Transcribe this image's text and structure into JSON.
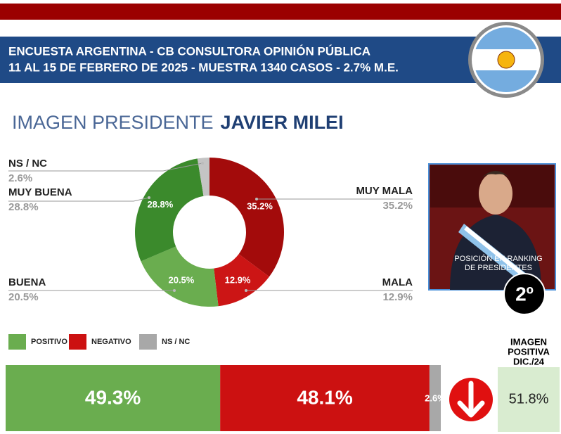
{
  "header": {
    "line1": "ENCUESTA ARGENTINA - CB CONSULTORA OPINIÓN PÚBLICA",
    "line2": "11 AL 15 DE FEBRERO DE 2025 - MUESTRA 1340 CASOS - 2.7% M.E."
  },
  "page_title": {
    "text": "IMAGEN PRESIDENTE",
    "name": "JAVIER MILEI"
  },
  "ranking": {
    "label_lines": [
      "POSICIÓN EN RANKING",
      "DE PRESIDENTES"
    ],
    "position": "2º"
  },
  "previous": {
    "label_lines": [
      "IMAGEN",
      "POSITIVA",
      "DIC./24"
    ],
    "value": "51.8%"
  },
  "chart_data": [
    {
      "type": "donut",
      "categories": [
        "MUY MALA",
        "MALA",
        "BUENA",
        "MUY BUENA",
        "NS / NC"
      ],
      "values": [
        35.2,
        12.9,
        20.5,
        28.8,
        2.6
      ],
      "value_labels": [
        "35.2%",
        "12.9%",
        "20.5%",
        "28.8%",
        "2.6%"
      ],
      "colors": [
        "#a30b0b",
        "#cc1515",
        "#6aad4f",
        "#3b8a2c",
        "#c4c4c4"
      ]
    },
    {
      "type": "bar",
      "orientation": "horizontal",
      "stacked": true,
      "xlim": [
        0,
        100
      ],
      "series": [
        {
          "name": "POSITIVO",
          "color": "#6aad4f",
          "values": [
            49.3
          ],
          "value_labels": [
            "49.3%"
          ]
        },
        {
          "name": "NEGATIVO",
          "color": "#cc1111",
          "values": [
            48.1
          ],
          "value_labels": [
            "48.1%"
          ]
        },
        {
          "name": "NS / NC",
          "color": "#a8a8a8",
          "values": [
            2.6
          ],
          "value_labels": [
            "2.6%"
          ]
        }
      ]
    }
  ]
}
